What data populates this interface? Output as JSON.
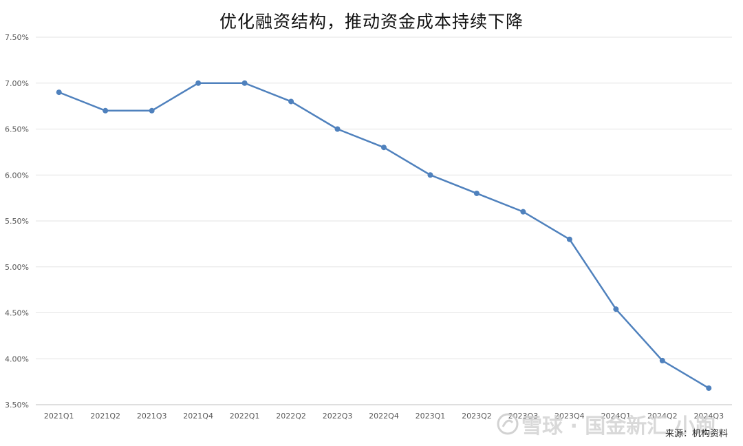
{
  "chart_data": {
    "type": "line",
    "title": "优化融资结构，推动资金成本持续下降",
    "categories": [
      "2021Q1",
      "2021Q2",
      "2021Q3",
      "2021Q4",
      "2022Q1",
      "2022Q2",
      "2022Q3",
      "2022Q4",
      "2023Q1",
      "2023Q2",
      "2023Q3",
      "2023Q4",
      "2024Q1",
      "2024Q2",
      "2024Q3"
    ],
    "series": [
      {
        "values": [
          6.9,
          6.7,
          6.7,
          7.0,
          7.0,
          6.8,
          6.5,
          6.3,
          6.0,
          5.8,
          5.6,
          5.3,
          4.54,
          3.98,
          3.68
        ]
      }
    ],
    "ylim": [
      3.5,
      7.5
    ],
    "yticks": [
      3.5,
      4.0,
      4.5,
      5.0,
      5.5,
      6.0,
      6.5,
      7.0,
      7.5
    ],
    "ytick_labels": [
      "3.50%",
      "4.00%",
      "4.50%",
      "5.00%",
      "5.50%",
      "6.00%",
      "6.50%",
      "7.00%",
      "7.50%"
    ],
    "grid": true,
    "legend": "none",
    "line_color": "#4F81BD",
    "source": "来源：机构资料"
  },
  "watermark": {
    "text": "雪球 · 国金新汇 小跑"
  }
}
